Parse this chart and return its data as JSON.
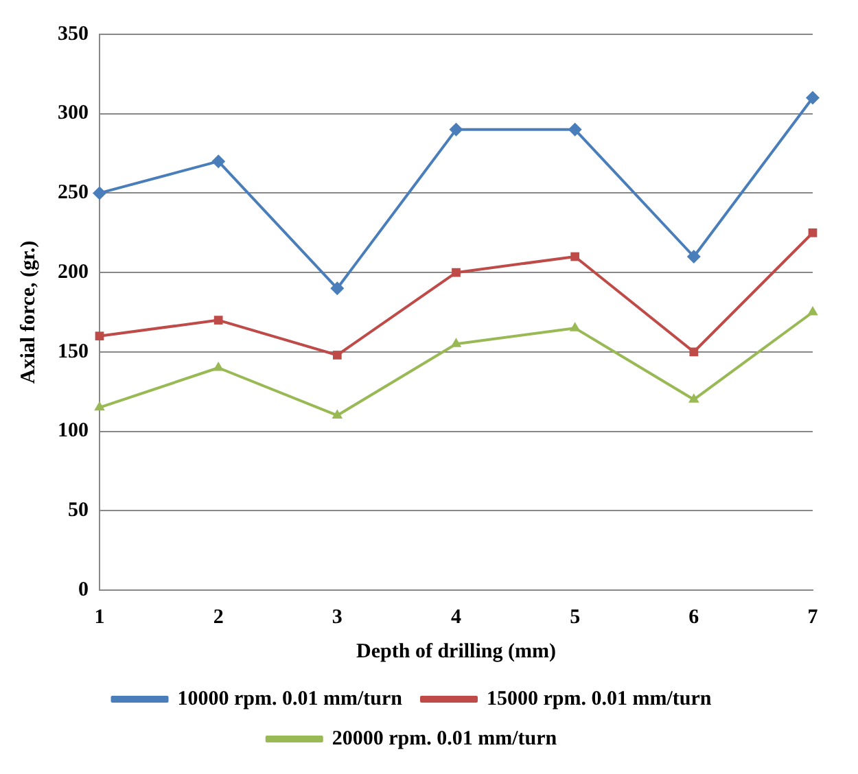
{
  "chart_data": {
    "type": "line",
    "xlabel": "Depth of drilling (mm)",
    "ylabel": "Axial force, (gr.)",
    "categories": [
      "1",
      "2",
      "3",
      "4",
      "5",
      "6",
      "7"
    ],
    "ylim": [
      0,
      350
    ],
    "yticks": [
      0,
      50,
      100,
      150,
      200,
      250,
      300,
      350
    ],
    "grid": "y",
    "legend": "bottom",
    "line_style": "solid",
    "series": [
      {
        "name": "10000 rpm. 0.01 mm/turn",
        "color": "#4a7ebb",
        "marker": "diamond",
        "values": [
          250,
          270,
          190,
          290,
          290,
          210,
          310
        ]
      },
      {
        "name": "15000 rpm. 0.01 mm/turn",
        "color": "#be4b48",
        "marker": "square",
        "values": [
          160,
          170,
          148,
          200,
          210,
          150,
          225
        ]
      },
      {
        "name": "20000 rpm. 0.01 mm/turn",
        "color": "#98b954",
        "marker": "triangle",
        "values": [
          115,
          140,
          110,
          155,
          165,
          120,
          175
        ]
      }
    ]
  }
}
